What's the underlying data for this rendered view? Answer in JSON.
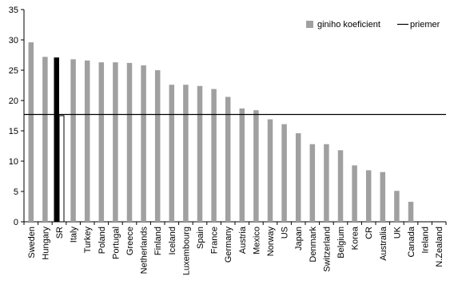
{
  "chart_data": {
    "type": "bar",
    "categories": [
      "Sweden",
      "Hungary",
      "SR",
      "Italy",
      "Turkey",
      "Poland",
      "Portugal",
      "Greece",
      "Netherlands",
      "Finland",
      "Iceland",
      "Luxembourg",
      "Spain",
      "France",
      "Germany",
      "Austria",
      "Mexico",
      "Norway",
      "US",
      "Japan",
      "Denmark",
      "Switzerland",
      "Belgium",
      "Korea",
      "CR",
      "Australia",
      "UK",
      "Canada",
      "Ireland",
      "N.Zealand"
    ],
    "series": [
      {
        "name": "giniho koeficient",
        "values": [
          29.6,
          27.2,
          27.1,
          26.8,
          26.6,
          26.3,
          26.3,
          26.2,
          25.8,
          25.0,
          22.6,
          22.6,
          22.4,
          21.9,
          20.6,
          18.7,
          18.4,
          16.9,
          16.1,
          14.6,
          12.8,
          12.8,
          11.8,
          9.3,
          8.5,
          8.2,
          5.1,
          3.3,
          0,
          0
        ]
      },
      {
        "name": "priemer",
        "type": "line",
        "value": 17.7
      }
    ],
    "highlight": {
      "index": 2,
      "values": [
        27.1,
        17.5
      ]
    },
    "ylim": [
      0,
      35
    ],
    "yticks": [
      0,
      5,
      10,
      15,
      20,
      25,
      30,
      35
    ],
    "grid": false,
    "legend_position": "top-right",
    "colors": {
      "bar": "#a0a0a0",
      "highlight": "#000000",
      "highlight_avg": "#ffffff",
      "line": "#000000"
    }
  }
}
